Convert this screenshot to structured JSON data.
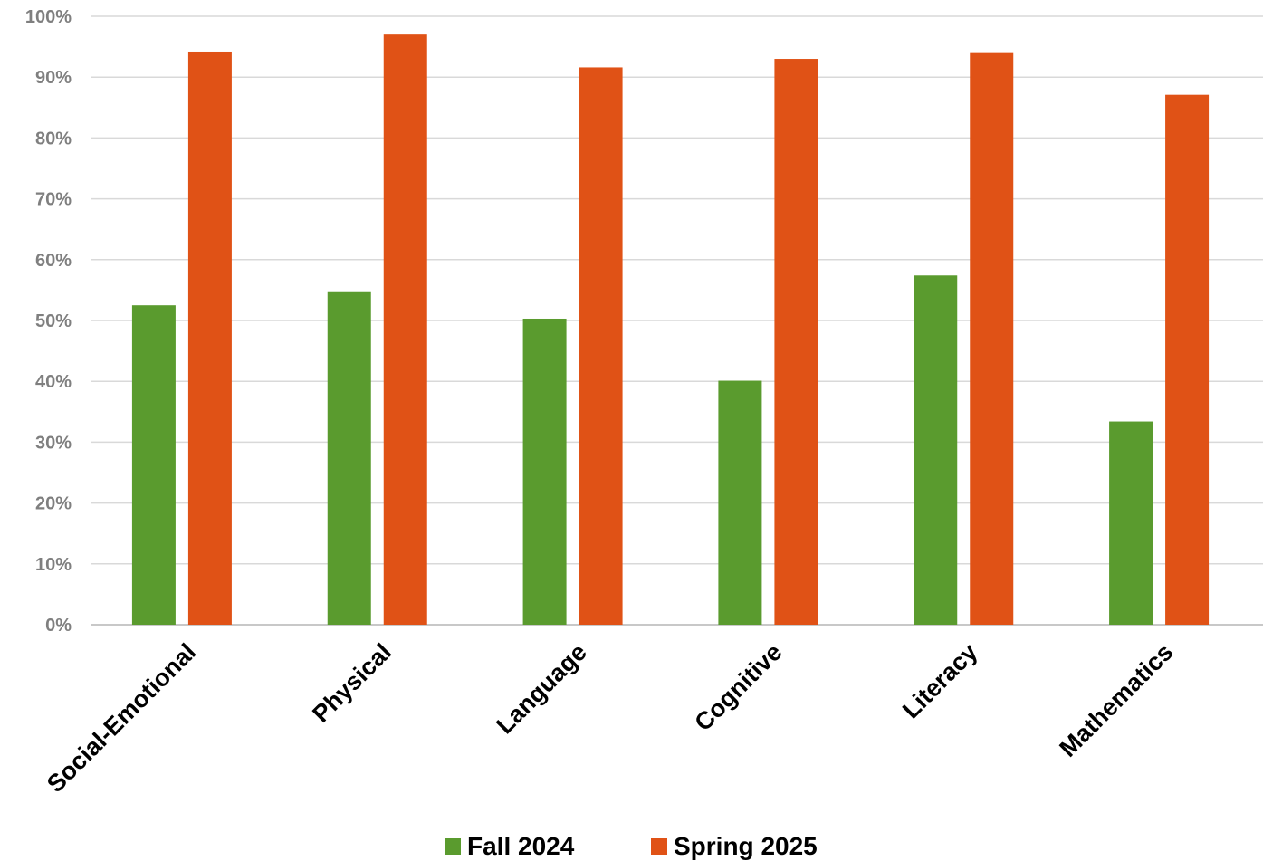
{
  "chart_data": {
    "type": "bar",
    "categories": [
      "Social-Emotional",
      "Physical",
      "Language",
      "Cognitive",
      "Literacy",
      "Mathematics"
    ],
    "series": [
      {
        "name": "Fall 2024",
        "color": "#5a9b2e",
        "values": [
          52.5,
          54.8,
          50.3,
          40.1,
          57.4,
          33.4
        ]
      },
      {
        "name": "Spring 2025",
        "color": "#e05216",
        "values": [
          94.2,
          97.0,
          91.6,
          93.0,
          94.1,
          87.1
        ]
      }
    ],
    "yticks": [
      "0%",
      "10%",
      "20%",
      "30%",
      "40%",
      "50%",
      "60%",
      "70%",
      "80%",
      "90%",
      "100%"
    ],
    "ylim": [
      0,
      100
    ],
    "grid": true,
    "legend_position": "bottom"
  }
}
